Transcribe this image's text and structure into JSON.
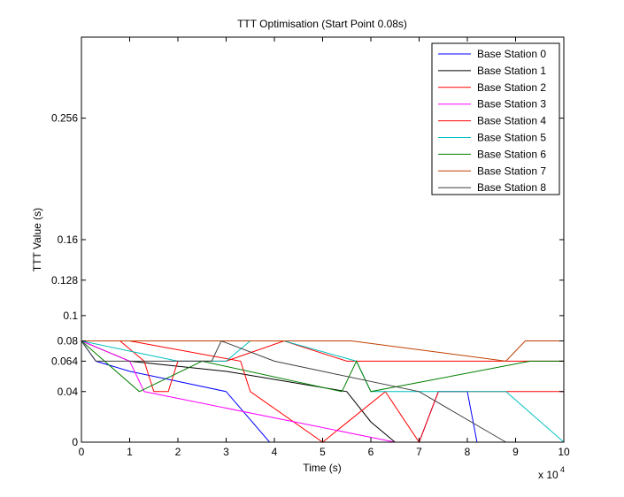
{
  "chart_data": {
    "type": "line",
    "title": "TTT Optimisation (Start Point 0.08s)",
    "xlabel": "Time (s)",
    "ylabel": "TTT Value (s)",
    "x_exponent_label": "x 10",
    "x_exponent_power": "4",
    "xlim": [
      0,
      10
    ],
    "ylim": [
      0,
      0.32
    ],
    "xticks": [
      "0",
      "1",
      "2",
      "3",
      "4",
      "5",
      "6",
      "7",
      "8",
      "9",
      "10"
    ],
    "yticks": [
      {
        "value": 0,
        "label": "0"
      },
      {
        "value": 0.04,
        "label": "0.04"
      },
      {
        "value": 0.064,
        "label": "0.064"
      },
      {
        "value": 0.08,
        "label": "0.08"
      },
      {
        "value": 0.1,
        "label": "0.1"
      },
      {
        "value": 0.128,
        "label": "0.128"
      },
      {
        "value": 0.16,
        "label": "0.16"
      },
      {
        "value": 0.256,
        "label": "0.256"
      }
    ],
    "grid": false,
    "legend_position": "top-right",
    "series": [
      {
        "name": "Base Station 0",
        "color": "#0000ff",
        "x": [
          0,
          0.3,
          1.0,
          2.0,
          3.0,
          3.9,
          5.0,
          6.5,
          7.0,
          7.4,
          8.0,
          8.2
        ],
        "y": [
          0.08,
          0.064,
          0.056,
          0.048,
          0.04,
          0.0,
          0.0,
          0.0,
          0.0,
          0.04,
          0.04,
          0.0
        ]
      },
      {
        "name": "Base Station 1",
        "color": "#000000",
        "x": [
          0,
          1.0,
          3.0,
          5.5,
          6.0,
          6.5
        ],
        "y": [
          0.08,
          0.064,
          0.056,
          0.04,
          0.016,
          0.0
        ]
      },
      {
        "name": "Base Station 2",
        "color": "#ff0000",
        "x": [
          0,
          1.0,
          3.3,
          3.5,
          5.0,
          6.3,
          7.0,
          7.4,
          10.0
        ],
        "y": [
          0.08,
          0.08,
          0.064,
          0.04,
          0.0,
          0.04,
          0.0,
          0.04,
          0.04
        ]
      },
      {
        "name": "Base Station 3",
        "color": "#ff00ff",
        "x": [
          0,
          1.0,
          1.3,
          6.5
        ],
        "y": [
          0.08,
          0.064,
          0.04,
          0.0
        ]
      },
      {
        "name": "Base Station 4",
        "color": "#ff0000",
        "x": [
          0,
          0.8,
          1.3,
          1.5,
          1.8,
          2.0,
          3.0,
          4.2,
          5.5,
          10.0
        ],
        "y": [
          0.08,
          0.08,
          0.064,
          0.04,
          0.04,
          0.064,
          0.064,
          0.08,
          0.064,
          0.064
        ]
      },
      {
        "name": "Base Station 5",
        "color": "#00bfbf",
        "x": [
          0,
          1.0,
          2.0,
          3.0,
          3.5,
          4.2,
          5.7,
          6.0,
          8.8,
          10.0
        ],
        "y": [
          0.08,
          0.072,
          0.064,
          0.064,
          0.08,
          0.08,
          0.064,
          0.04,
          0.04,
          0.0
        ]
      },
      {
        "name": "Base Station 6",
        "color": "#007f00",
        "x": [
          0,
          1.2,
          2.5,
          5.4,
          5.7,
          6.0,
          9.3,
          10.0
        ],
        "y": [
          0.08,
          0.04,
          0.064,
          0.04,
          0.064,
          0.04,
          0.064,
          0.064
        ]
      },
      {
        "name": "Base Station 7",
        "color": "#bf3f00",
        "x": [
          0,
          2.0,
          4.0,
          5.6,
          8.8,
          9.2,
          10.0
        ],
        "y": [
          0.08,
          0.08,
          0.08,
          0.08,
          0.064,
          0.08,
          0.08
        ]
      },
      {
        "name": "Base Station 8",
        "color": "#404040",
        "x": [
          0,
          0.3,
          2.7,
          2.9,
          4.0,
          5.0,
          7.0,
          8.8
        ],
        "y": [
          0.08,
          0.064,
          0.064,
          0.08,
          0.064,
          0.056,
          0.04,
          0.0
        ]
      }
    ]
  }
}
